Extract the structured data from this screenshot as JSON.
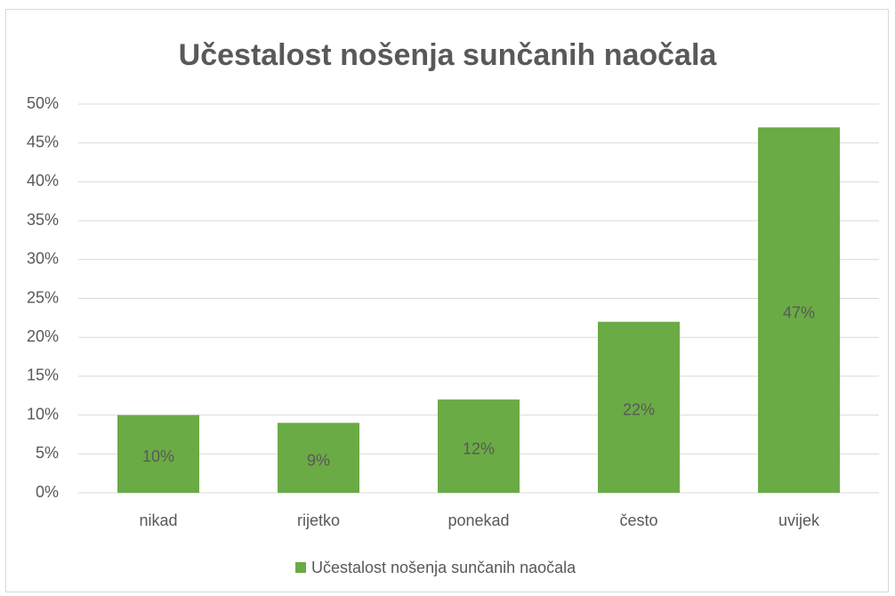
{
  "chart_data": {
    "type": "bar",
    "title": "Učestalost nošenja sunčanih naočala",
    "categories": [
      "nikad",
      "rijetko",
      "ponekad",
      "često",
      "uvijek"
    ],
    "series": [
      {
        "name": "Učestalost nošenja sunčanih naočala",
        "color": "#6aab45",
        "values": [
          10,
          9,
          12,
          22,
          47
        ],
        "value_labels": [
          "10%",
          "9%",
          "12%",
          "22%",
          "47%"
        ]
      }
    ],
    "ylim": [
      0,
      50
    ],
    "yticks": [
      {
        "value": 0,
        "label": "0%"
      },
      {
        "value": 5,
        "label": "5%"
      },
      {
        "value": 10,
        "label": "10%"
      },
      {
        "value": 15,
        "label": "15%"
      },
      {
        "value": 20,
        "label": "20%"
      },
      {
        "value": 25,
        "label": "25%"
      },
      {
        "value": 30,
        "label": "30%"
      },
      {
        "value": 35,
        "label": "35%"
      },
      {
        "value": 40,
        "label": "40%"
      },
      {
        "value": 45,
        "label": "45%"
      },
      {
        "value": 50,
        "label": "50%"
      }
    ],
    "grid": true,
    "legend": "bottom"
  }
}
